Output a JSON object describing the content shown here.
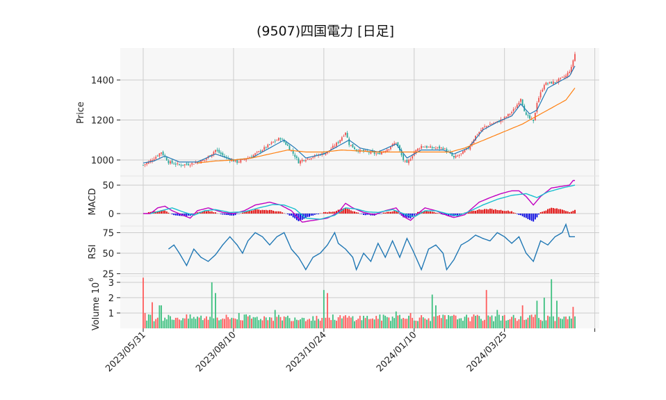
{
  "chart_data": {
    "type": "candlestick",
    "title": "(9507)四国電力  [日足]",
    "colors": {
      "up": "#ef5350",
      "down": "#26a69a",
      "sma_short": "#1f77b4",
      "sma_long": "#ff7f0e",
      "macd": "#c000c0",
      "signal": "#17becf",
      "hist_pos": "#e00000",
      "hist_neg": "#0000e0",
      "rsi": "#1f77b4",
      "vol_up": "#ff5c5c",
      "vol_down": "#3cc07f",
      "grid": "#cccccc",
      "panel_bg": "#f7f7f7"
    },
    "x_tick_labels": [
      "2023/05/31",
      "2023/08/10",
      "2023/10/24",
      "2024/01/10",
      "2024/03/25"
    ],
    "price": {
      "ylabel": "Price",
      "ylim": [
        920,
        1560
      ],
      "yticks": [
        1000,
        1200,
        1400
      ],
      "close_keypoints": [
        [
          0,
          975
        ],
        [
          3,
          990
        ],
        [
          6,
          1010
        ],
        [
          10,
          1040
        ],
        [
          14,
          990
        ],
        [
          20,
          975
        ],
        [
          26,
          980
        ],
        [
          34,
          1000
        ],
        [
          40,
          1050
        ],
        [
          46,
          1010
        ],
        [
          52,
          990
        ],
        [
          58,
          1010
        ],
        [
          64,
          1040
        ],
        [
          72,
          1090
        ],
        [
          76,
          1110
        ],
        [
          80,
          1070
        ],
        [
          84,
          1020
        ],
        [
          86,
          990
        ],
        [
          88,
          1000
        ],
        [
          95,
          1020
        ],
        [
          102,
          1040
        ],
        [
          108,
          1090
        ],
        [
          112,
          1140
        ],
        [
          114,
          1080
        ],
        [
          118,
          1050
        ],
        [
          124,
          1040
        ],
        [
          130,
          1030
        ],
        [
          136,
          1060
        ],
        [
          140,
          1090
        ],
        [
          144,
          1000
        ],
        [
          146,
          980
        ],
        [
          150,
          1040
        ],
        [
          154,
          1070
        ],
        [
          160,
          1060
        ],
        [
          166,
          1060
        ],
        [
          170,
          1030
        ],
        [
          172,
          1010
        ],
        [
          176,
          1030
        ],
        [
          180,
          1060
        ],
        [
          184,
          1120
        ],
        [
          188,
          1160
        ],
        [
          192,
          1180
        ],
        [
          196,
          1190
        ],
        [
          200,
          1210
        ],
        [
          204,
          1240
        ],
        [
          206,
          1260
        ],
        [
          209,
          1310
        ],
        [
          212,
          1220
        ],
        [
          215,
          1200
        ],
        [
          216,
          1190
        ],
        [
          218,
          1290
        ],
        [
          222,
          1380
        ],
        [
          228,
          1390
        ],
        [
          234,
          1420
        ],
        [
          237,
          1460
        ],
        [
          238,
          1500
        ],
        [
          239,
          1530
        ]
      ],
      "sma_short_keypoints": [
        [
          0,
          985
        ],
        [
          6,
          995
        ],
        [
          12,
          1020
        ],
        [
          20,
          990
        ],
        [
          30,
          990
        ],
        [
          40,
          1030
        ],
        [
          50,
          1000
        ],
        [
          60,
          1010
        ],
        [
          70,
          1060
        ],
        [
          78,
          1100
        ],
        [
          84,
          1060
        ],
        [
          90,
          1010
        ],
        [
          100,
          1030
        ],
        [
          110,
          1080
        ],
        [
          114,
          1100
        ],
        [
          120,
          1060
        ],
        [
          130,
          1040
        ],
        [
          140,
          1080
        ],
        [
          146,
          1010
        ],
        [
          154,
          1050
        ],
        [
          166,
          1050
        ],
        [
          172,
          1030
        ],
        [
          180,
          1060
        ],
        [
          188,
          1150
        ],
        [
          196,
          1190
        ],
        [
          204,
          1220
        ],
        [
          209,
          1280
        ],
        [
          214,
          1230
        ],
        [
          218,
          1250
        ],
        [
          224,
          1360
        ],
        [
          232,
          1400
        ],
        [
          236,
          1420
        ],
        [
          239,
          1470
        ]
      ],
      "sma_long_keypoints": [
        [
          30,
          985
        ],
        [
          40,
          995
        ],
        [
          50,
          1000
        ],
        [
          60,
          1010
        ],
        [
          70,
          1030
        ],
        [
          80,
          1050
        ],
        [
          90,
          1040
        ],
        [
          100,
          1040
        ],
        [
          110,
          1050
        ],
        [
          120,
          1045
        ],
        [
          130,
          1040
        ],
        [
          140,
          1040
        ],
        [
          150,
          1040
        ],
        [
          160,
          1040
        ],
        [
          170,
          1040
        ],
        [
          178,
          1060
        ],
        [
          186,
          1090
        ],
        [
          194,
          1120
        ],
        [
          202,
          1150
        ],
        [
          210,
          1180
        ],
        [
          218,
          1220
        ],
        [
          226,
          1260
        ],
        [
          234,
          1300
        ],
        [
          239,
          1360
        ]
      ]
    },
    "macd": {
      "ylabel": "MACD",
      "ylim": [
        -22,
        66
      ],
      "yticks": [
        0,
        50
      ],
      "macd_keypoints": [
        [
          0,
          0
        ],
        [
          4,
          0
        ],
        [
          8,
          10
        ],
        [
          12,
          13
        ],
        [
          16,
          5
        ],
        [
          22,
          -3
        ],
        [
          26,
          -8
        ],
        [
          30,
          5
        ],
        [
          36,
          10
        ],
        [
          44,
          2
        ],
        [
          50,
          0
        ],
        [
          56,
          5
        ],
        [
          62,
          15
        ],
        [
          70,
          20
        ],
        [
          76,
          15
        ],
        [
          82,
          5
        ],
        [
          88,
          -15
        ],
        [
          94,
          -12
        ],
        [
          102,
          -8
        ],
        [
          108,
          2
        ],
        [
          112,
          18
        ],
        [
          116,
          10
        ],
        [
          122,
          2
        ],
        [
          128,
          -2
        ],
        [
          134,
          5
        ],
        [
          140,
          10
        ],
        [
          144,
          -5
        ],
        [
          148,
          -12
        ],
        [
          152,
          0
        ],
        [
          156,
          10
        ],
        [
          162,
          5
        ],
        [
          168,
          -3
        ],
        [
          172,
          -7
        ],
        [
          178,
          -2
        ],
        [
          186,
          20
        ],
        [
          192,
          28
        ],
        [
          198,
          35
        ],
        [
          204,
          40
        ],
        [
          208,
          40
        ],
        [
          212,
          30
        ],
        [
          216,
          15
        ],
        [
          220,
          30
        ],
        [
          226,
          45
        ],
        [
          232,
          48
        ],
        [
          236,
          50
        ],
        [
          238,
          58
        ],
        [
          239,
          58
        ]
      ],
      "signal_keypoints": [
        [
          4,
          0
        ],
        [
          10,
          5
        ],
        [
          16,
          10
        ],
        [
          22,
          3
        ],
        [
          28,
          -3
        ],
        [
          34,
          5
        ],
        [
          40,
          7
        ],
        [
          48,
          2
        ],
        [
          56,
          3
        ],
        [
          64,
          10
        ],
        [
          72,
          16
        ],
        [
          78,
          15
        ],
        [
          84,
          8
        ],
        [
          90,
          -8
        ],
        [
          98,
          -10
        ],
        [
          106,
          -3
        ],
        [
          112,
          10
        ],
        [
          118,
          8
        ],
        [
          124,
          3
        ],
        [
          130,
          2
        ],
        [
          138,
          7
        ],
        [
          144,
          0
        ],
        [
          150,
          -6
        ],
        [
          156,
          5
        ],
        [
          162,
          5
        ],
        [
          168,
          0
        ],
        [
          174,
          -4
        ],
        [
          180,
          3
        ],
        [
          188,
          15
        ],
        [
          196,
          25
        ],
        [
          204,
          32
        ],
        [
          212,
          35
        ],
        [
          218,
          28
        ],
        [
          224,
          38
        ],
        [
          232,
          45
        ],
        [
          239,
          50
        ]
      ],
      "hist_keypoints": [
        [
          0,
          0
        ],
        [
          6,
          4
        ],
        [
          12,
          6
        ],
        [
          16,
          -2
        ],
        [
          22,
          -4
        ],
        [
          26,
          -4
        ],
        [
          30,
          2
        ],
        [
          36,
          5
        ],
        [
          44,
          -2
        ],
        [
          50,
          -3
        ],
        [
          56,
          3
        ],
        [
          62,
          7
        ],
        [
          70,
          6
        ],
        [
          76,
          3
        ],
        [
          82,
          -4
        ],
        [
          86,
          -14
        ],
        [
          92,
          -5
        ],
        [
          100,
          2
        ],
        [
          106,
          4
        ],
        [
          112,
          10
        ],
        [
          116,
          4
        ],
        [
          122,
          -2
        ],
        [
          128,
          -3
        ],
        [
          134,
          2
        ],
        [
          140,
          5
        ],
        [
          144,
          -6
        ],
        [
          148,
          -8
        ],
        [
          152,
          2
        ],
        [
          156,
          5
        ],
        [
          162,
          2
        ],
        [
          168,
          -3
        ],
        [
          172,
          -4
        ],
        [
          178,
          1
        ],
        [
          186,
          7
        ],
        [
          192,
          8
        ],
        [
          198,
          6
        ],
        [
          204,
          4
        ],
        [
          208,
          -2
        ],
        [
          212,
          -8
        ],
        [
          216,
          -14
        ],
        [
          220,
          2
        ],
        [
          226,
          10
        ],
        [
          232,
          7
        ],
        [
          236,
          3
        ],
        [
          239,
          6
        ]
      ]
    },
    "rsi": {
      "ylabel": "RSI",
      "ylim": [
        22,
        83
      ],
      "yticks": [
        25,
        50,
        75
      ],
      "keypoints": [
        [
          14,
          55
        ],
        [
          17,
          60
        ],
        [
          20,
          50
        ],
        [
          24,
          35
        ],
        [
          28,
          55
        ],
        [
          32,
          45
        ],
        [
          36,
          40
        ],
        [
          40,
          48
        ],
        [
          44,
          60
        ],
        [
          48,
          70
        ],
        [
          52,
          60
        ],
        [
          55,
          50
        ],
        [
          58,
          65
        ],
        [
          62,
          75
        ],
        [
          66,
          70
        ],
        [
          70,
          60
        ],
        [
          74,
          70
        ],
        [
          78,
          75
        ],
        [
          82,
          55
        ],
        [
          86,
          45
        ],
        [
          90,
          30
        ],
        [
          94,
          45
        ],
        [
          98,
          50
        ],
        [
          102,
          60
        ],
        [
          106,
          75
        ],
        [
          108,
          62
        ],
        [
          112,
          55
        ],
        [
          116,
          45
        ],
        [
          118,
          30
        ],
        [
          122,
          50
        ],
        [
          126,
          40
        ],
        [
          130,
          62
        ],
        [
          134,
          45
        ],
        [
          138,
          65
        ],
        [
          142,
          45
        ],
        [
          146,
          68
        ],
        [
          150,
          50
        ],
        [
          154,
          30
        ],
        [
          158,
          55
        ],
        [
          162,
          60
        ],
        [
          166,
          50
        ],
        [
          168,
          30
        ],
        [
          172,
          42
        ],
        [
          176,
          60
        ],
        [
          180,
          65
        ],
        [
          184,
          72
        ],
        [
          188,
          68
        ],
        [
          192,
          65
        ],
        [
          196,
          75
        ],
        [
          200,
          70
        ],
        [
          204,
          62
        ],
        [
          208,
          70
        ],
        [
          212,
          50
        ],
        [
          216,
          40
        ],
        [
          220,
          65
        ],
        [
          224,
          60
        ],
        [
          228,
          70
        ],
        [
          232,
          75
        ],
        [
          234,
          85
        ],
        [
          236,
          70
        ],
        [
          239,
          70
        ]
      ]
    },
    "volume": {
      "ylabel": "Volume",
      "exponent_label": "10",
      "exponent_power": "6",
      "ylim": [
        0,
        3.4
      ],
      "yticks": [
        1,
        2,
        3
      ],
      "baseline": 0.6,
      "spikes": [
        [
          0,
          3.3
        ],
        [
          1,
          1.0
        ],
        [
          5,
          1.7
        ],
        [
          9,
          1.5
        ],
        [
          10,
          1.5
        ],
        [
          38,
          3.0
        ],
        [
          40,
          2.3
        ],
        [
          53,
          1.0
        ],
        [
          73,
          1.2
        ],
        [
          100,
          2.5
        ],
        [
          102,
          2.3
        ],
        [
          140,
          1.1
        ],
        [
          148,
          1.0
        ],
        [
          160,
          2.2
        ],
        [
          162,
          1.5
        ],
        [
          190,
          2.5
        ],
        [
          196,
          1.2
        ],
        [
          210,
          1.5
        ],
        [
          218,
          1.8
        ],
        [
          222,
          2.0
        ],
        [
          226,
          3.2
        ],
        [
          229,
          1.8
        ],
        [
          238,
          1.4
        ]
      ]
    },
    "n_bars": 240
  }
}
